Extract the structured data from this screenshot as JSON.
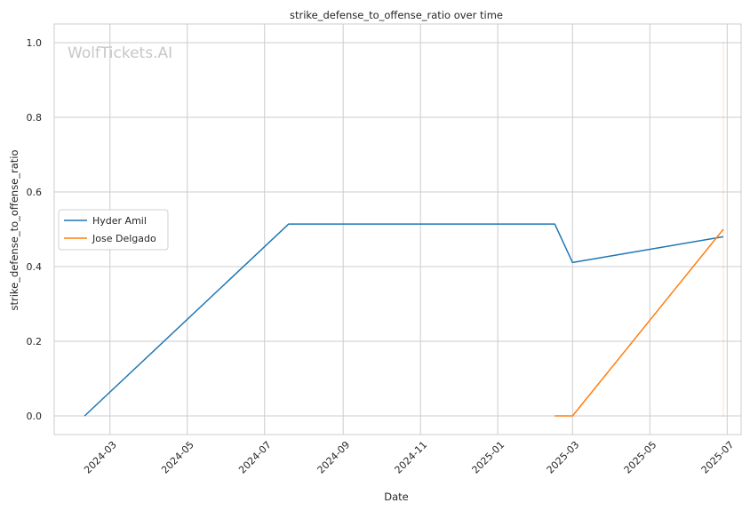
{
  "chart_data": {
    "type": "line",
    "title": "strike_defense_to_offense_ratio over time",
    "xlabel": "Date",
    "ylabel": "strike_defense_to_offense_ratio",
    "watermark": "WolfTickets.AI",
    "x_ticks": [
      "2024-03",
      "2024-05",
      "2024-07",
      "2024-09",
      "2024-11",
      "2025-01",
      "2025-03",
      "2025-05",
      "2025-07"
    ],
    "y_ticks": [
      "0.0",
      "0.2",
      "0.4",
      "0.6",
      "0.8",
      "1.0"
    ],
    "xlim": [
      "2024-01-17",
      "2025-07-12"
    ],
    "ylim": [
      -0.05,
      1.05
    ],
    "grid": true,
    "legend_position": "center-left",
    "series": [
      {
        "name": "Hyder Amil",
        "color": "#1f77b4",
        "points": [
          {
            "x": "2024-02-10",
            "y": 0.0
          },
          {
            "x": "2024-07-20",
            "y": 0.514
          },
          {
            "x": "2025-02-15",
            "y": 0.514
          },
          {
            "x": "2025-03-01",
            "y": 0.411
          },
          {
            "x": "2025-06-28",
            "y": 0.48
          }
        ]
      },
      {
        "name": "Jose Delgado",
        "color": "#ff7f0e",
        "points": [
          {
            "x": "2025-02-15",
            "y": 0.0
          },
          {
            "x": "2025-03-01",
            "y": 0.0
          },
          {
            "x": "2025-06-28",
            "y": 0.5
          }
        ]
      }
    ]
  }
}
